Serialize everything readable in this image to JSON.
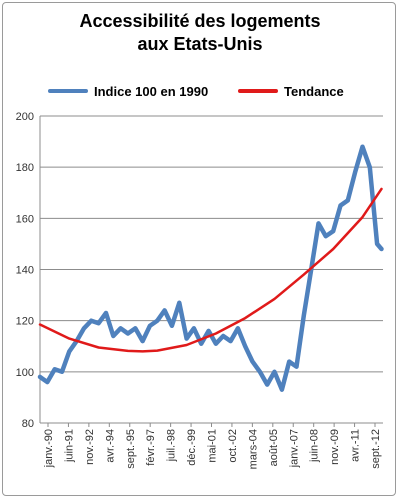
{
  "title_line1": "Accessibilité des logements",
  "title_line2": "aux Etats-Unis",
  "chart_data": {
    "type": "line",
    "title": "Accessibilité des logements aux Etats-Unis",
    "xlabel": "",
    "ylabel": "",
    "ylim": [
      80,
      200
    ],
    "yticks": [
      80,
      100,
      120,
      140,
      160,
      180,
      200
    ],
    "grid": true,
    "legend_position": "top",
    "x_tick_labels": [
      "janv.-90",
      "juin-91",
      "nov.-92",
      "avr.-94",
      "sept.-95",
      "févr.-97",
      "juil.-98",
      "déc.-99",
      "mai-01",
      "oct.-02",
      "mars-04",
      "août-05",
      "janv.-07",
      "juin-08",
      "nov.-09",
      "avr.-11",
      "sept.-12"
    ],
    "series": [
      {
        "name": "Indice 100 en 1990",
        "color": "#4f81bd",
        "style": "thick",
        "x": [
          1990.0,
          1990.5,
          1991.0,
          1991.5,
          1992.0,
          1992.5,
          1993.0,
          1993.5,
          1994.0,
          1994.5,
          1995.0,
          1995.5,
          1996.0,
          1996.5,
          1997.0,
          1997.5,
          1998.0,
          1998.5,
          1999.0,
          1999.5,
          2000.0,
          2000.5,
          2001.0,
          2001.5,
          2002.0,
          2002.5,
          2003.0,
          2003.5,
          2004.0,
          2004.5,
          2005.0,
          2005.5,
          2006.0,
          2006.5,
          2007.0,
          2007.5,
          2008.0,
          2008.5,
          2009.0,
          2009.5,
          2010.0,
          2010.5,
          2011.0,
          2011.5,
          2012.0,
          2012.5,
          2013.0,
          2013.3
        ],
        "y": [
          98,
          96,
          101,
          100,
          108,
          112,
          117,
          120,
          119,
          123,
          114,
          117,
          115,
          117,
          112,
          118,
          120,
          124,
          118,
          127,
          113,
          117,
          111,
          116,
          111,
          114,
          112,
          117,
          110,
          104,
          100,
          95,
          100,
          93,
          104,
          102,
          122,
          140,
          158,
          153,
          155,
          165,
          167,
          178,
          188,
          180,
          150,
          148
        ]
      },
      {
        "name": "Tendance",
        "color": "#e01a1a",
        "style": "solid",
        "x": [
          1990.0,
          1992.0,
          1994.0,
          1996.0,
          1997.0,
          1998.0,
          2000.0,
          2002.0,
          2004.0,
          2006.0,
          2008.0,
          2010.0,
          2012.0,
          2013.3
        ],
        "y": [
          118.5,
          113.0,
          109.5,
          108.2,
          108.0,
          108.3,
          110.5,
          115.0,
          121.0,
          128.5,
          138.0,
          148.0,
          160.5,
          171.5
        ]
      }
    ]
  }
}
